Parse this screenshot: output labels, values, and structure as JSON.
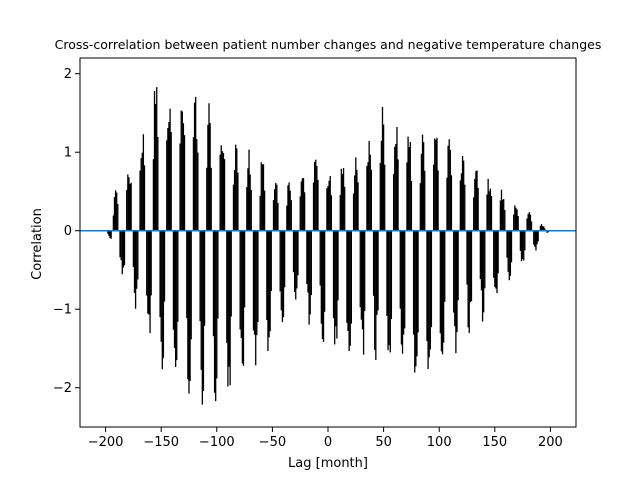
{
  "chart_data": {
    "type": "bar",
    "title": "Cross-correlation between patient number changes and negative temperature changes",
    "xlabel": "Lag [month]",
    "ylabel": "Correlation",
    "xlim": [
      -223,
      223
    ],
    "ylim": [
      -2.5,
      2.2
    ],
    "xticks": [
      -200,
      -150,
      -100,
      -50,
      0,
      50,
      100,
      150,
      200
    ],
    "yticks": [
      -2,
      -1,
      0,
      1,
      2
    ],
    "grid": false,
    "lag_range": [
      -199,
      199
    ],
    "bar_color": "#000000",
    "zero_line_color": "#1f77b4",
    "envelope_peaks": [
      {
        "lag": -199,
        "value": 0.0
      },
      {
        "lag": -190,
        "value": 0.6
      },
      {
        "lag": -170,
        "value": 1.1
      },
      {
        "lag": -155,
        "value": 2.0
      },
      {
        "lag": -140,
        "value": 1.9
      },
      {
        "lag": -110,
        "value": 1.75
      },
      {
        "lag": -80,
        "value": 1.1
      },
      {
        "lag": -60,
        "value": 0.95
      },
      {
        "lag": -30,
        "value": 0.55
      },
      {
        "lag": -10,
        "value": 1.0
      },
      {
        "lag": 0,
        "value": 0.8
      },
      {
        "lag": 20,
        "value": 0.9
      },
      {
        "lag": 50,
        "value": 1.6
      },
      {
        "lag": 80,
        "value": 1.2
      },
      {
        "lag": 100,
        "value": 1.3
      },
      {
        "lag": 120,
        "value": 1.0
      },
      {
        "lag": 150,
        "value": 0.65
      },
      {
        "lag": 180,
        "value": 0.25
      },
      {
        "lag": 199,
        "value": 0.0
      }
    ],
    "envelope_troughs": [
      {
        "lag": -199,
        "value": 0.0
      },
      {
        "lag": -185,
        "value": -0.6
      },
      {
        "lag": -150,
        "value": -1.75
      },
      {
        "lag": -140,
        "value": -1.9
      },
      {
        "lag": -110,
        "value": -2.25
      },
      {
        "lag": -100,
        "value": -2.25
      },
      {
        "lag": -60,
        "value": -1.9
      },
      {
        "lag": -30,
        "value": -0.85
      },
      {
        "lag": 0,
        "value": -1.65
      },
      {
        "lag": 20,
        "value": -1.8
      },
      {
        "lag": 50,
        "value": -1.6
      },
      {
        "lag": 90,
        "value": -2.2
      },
      {
        "lag": 120,
        "value": -1.6
      },
      {
        "lag": 150,
        "value": -0.9
      },
      {
        "lag": 180,
        "value": -0.4
      },
      {
        "lag": 199,
        "value": 0.0
      }
    ],
    "oscillation_period": 12
  }
}
